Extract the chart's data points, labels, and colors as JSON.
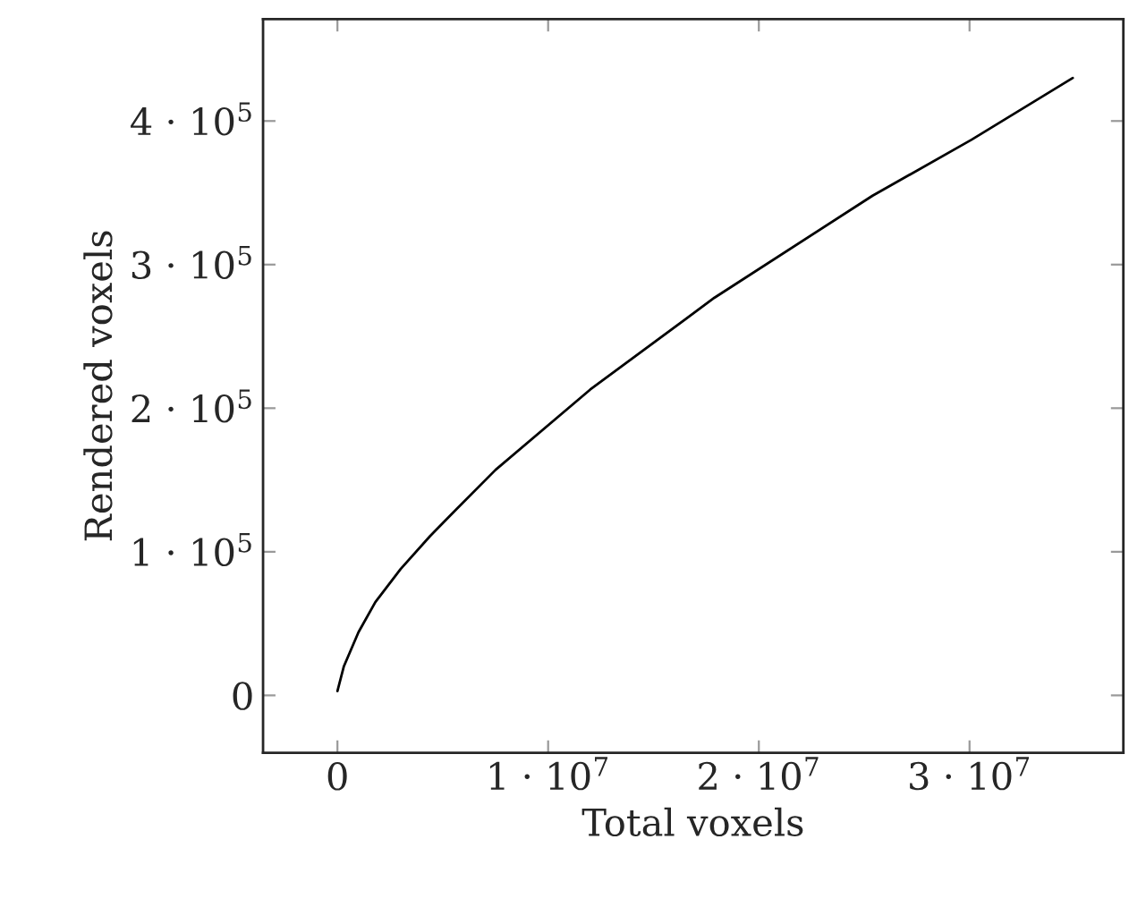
{
  "chart_data": {
    "type": "line",
    "xlabel": "Total voxels",
    "ylabel": "Rendered voxels",
    "x": [
      0,
      300000,
      1000000,
      1800000,
      3000000,
      4400000,
      5200000,
      7500000,
      12000000,
      17900000,
      25400000,
      30100000,
      34900000
    ],
    "series": [
      {
        "color": "#000000",
        "values": [
          3000,
          20000,
          44000,
          65000,
          88000,
          111000,
          123000,
          157000,
          213000,
          277000,
          348000,
          387000,
          430000
        ]
      }
    ],
    "xlim": [
      -3530000,
      37300000
    ],
    "ylim": [
      -40000,
      471000
    ],
    "xticks": [
      {
        "value": 0,
        "label": "0"
      },
      {
        "value": 10000000,
        "label": "1 · 10$^{7}$"
      },
      {
        "value": 20000000,
        "label": "2 · 10$^{7}$"
      },
      {
        "value": 30000000,
        "label": "3 · 10$^{7}$"
      }
    ],
    "yticks": [
      {
        "value": 0,
        "label": "0"
      },
      {
        "value": 100000,
        "label": "1 · 10$^{5}$"
      },
      {
        "value": 200000,
        "label": "2 · 10$^{5}$"
      },
      {
        "value": 300000,
        "label": "3 · 10$^{5}$"
      },
      {
        "value": 400000,
        "label": "4 · 10$^{5}$"
      }
    ],
    "grid": false,
    "marker": "none",
    "line_style": "solid"
  }
}
